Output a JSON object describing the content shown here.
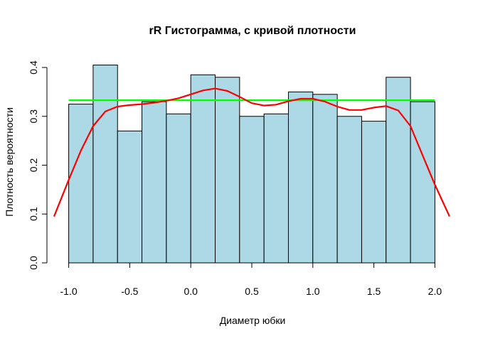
{
  "chart_data": {
    "type": "bar",
    "title": "rR Гистограмма, с кривой плотности",
    "xlabel": "Диаметр юбки",
    "ylabel": "Плотность вероятности",
    "bin_edges": [
      -1.0,
      -0.8,
      -0.6,
      -0.4,
      -0.2,
      0.0,
      0.2,
      0.4,
      0.6,
      0.8,
      1.0,
      1.2,
      1.4,
      1.6,
      1.8,
      2.0
    ],
    "values": [
      0.325,
      0.405,
      0.27,
      0.33,
      0.305,
      0.385,
      0.38,
      0.3,
      0.305,
      0.35,
      0.345,
      0.3,
      0.29,
      0.38,
      0.33
    ],
    "xlim": [
      -1.12,
      2.12
    ],
    "ylim": [
      0,
      0.4
    ],
    "x_ticks": [
      -1.0,
      -0.5,
      0.0,
      0.5,
      1.0,
      1.5,
      2.0
    ],
    "x_tick_labels": [
      "-1.0",
      "-0.5",
      "0.0",
      "0.5",
      "1.0",
      "1.5",
      "2.0"
    ],
    "y_ticks": [
      0.0,
      0.1,
      0.2,
      0.3,
      0.4
    ],
    "y_tick_labels": [
      "0.0",
      "0.1",
      "0.2",
      "0.3",
      "0.4"
    ],
    "grid": false,
    "bar_color": "#add8e6",
    "bar_edge_color": "#000000",
    "lines": [
      {
        "role": "uniform-density",
        "color": "#00ff00",
        "x": [
          -1.0,
          2.0
        ],
        "y": [
          0.333,
          0.333
        ]
      },
      {
        "role": "kernel-density",
        "color": "#ff0000",
        "x": [
          -1.12,
          -1.0,
          -0.9,
          -0.8,
          -0.7,
          -0.6,
          -0.5,
          -0.4,
          -0.3,
          -0.2,
          -0.1,
          0.0,
          0.1,
          0.2,
          0.3,
          0.4,
          0.5,
          0.6,
          0.7,
          0.8,
          0.9,
          1.0,
          1.1,
          1.2,
          1.3,
          1.4,
          1.5,
          1.6,
          1.7,
          1.8,
          1.9,
          2.0,
          2.12
        ],
        "y": [
          0.095,
          0.17,
          0.23,
          0.28,
          0.31,
          0.32,
          0.323,
          0.325,
          0.328,
          0.332,
          0.337,
          0.345,
          0.353,
          0.357,
          0.352,
          0.34,
          0.327,
          0.322,
          0.324,
          0.331,
          0.336,
          0.336,
          0.33,
          0.32,
          0.313,
          0.313,
          0.318,
          0.321,
          0.312,
          0.28,
          0.22,
          0.16,
          0.095
        ]
      }
    ]
  }
}
